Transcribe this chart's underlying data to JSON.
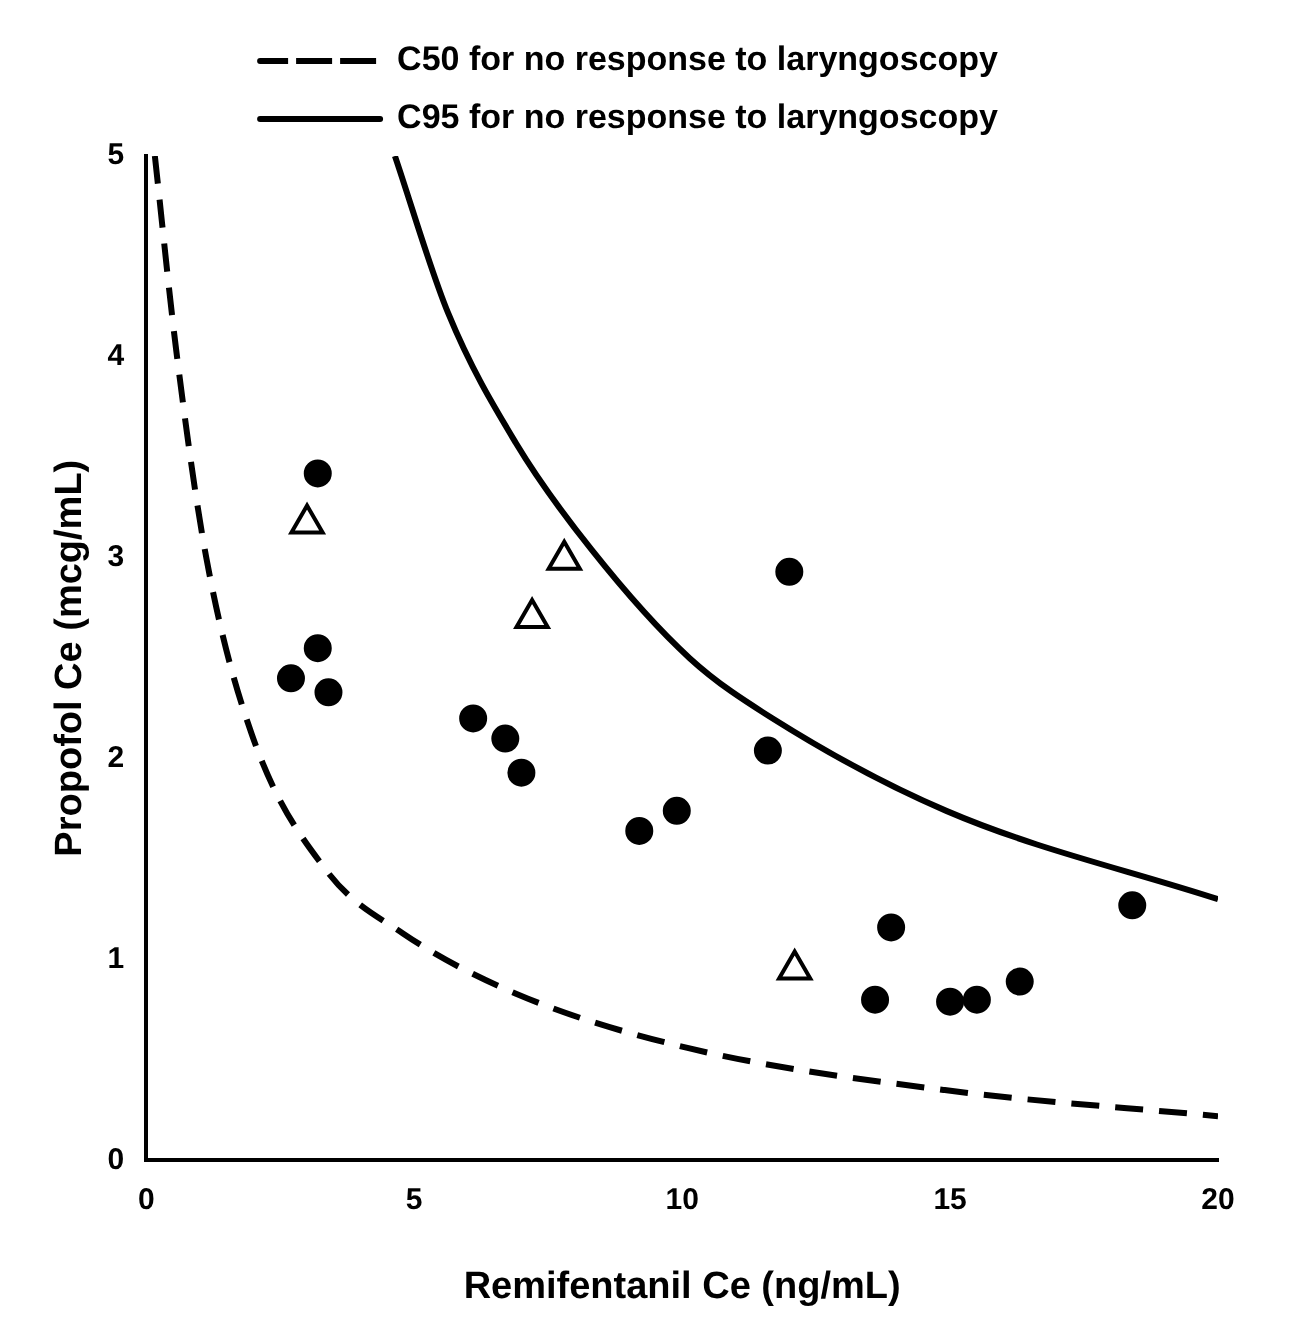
{
  "chart_data": {
    "type": "scatter",
    "xlabel": "Remifentanil Ce (ng/mL)",
    "ylabel": "Propofol Ce (mcg/mL)",
    "xlim": [
      0,
      20
    ],
    "xticks": [
      0,
      5,
      10,
      15,
      20
    ],
    "ylim": [
      0,
      5
    ],
    "yticks": [
      0,
      1,
      2,
      3,
      4,
      5
    ],
    "grid": false,
    "legend": "top",
    "series": [
      {
        "name": "C50 for no response to laryngoscopy",
        "type": "line",
        "color": "#000000",
        "line_style": "dashed",
        "marker": "none",
        "x": [
          0.16,
          0.56,
          1.12,
          1.97,
          3.37,
          4.79,
          6.9,
          10.1,
          14.9,
          20
        ],
        "values": [
          5,
          4.03,
          3.0,
          2.12,
          1.44,
          1.13,
          0.83,
          0.56,
          0.35,
          0.22
        ]
      },
      {
        "name": "C95 for no response to laryngoscopy",
        "type": "line",
        "color": "#000000",
        "line_style": "solid",
        "marker": "none",
        "x": [
          4.64,
          5.63,
          6.9,
          8.31,
          10.14,
          11.69,
          14.93,
          20
        ],
        "values": [
          5,
          4.22,
          3.57,
          3.04,
          2.5,
          2.2,
          1.74,
          1.3
        ]
      },
      {
        "type": "scatter",
        "color": "#000000",
        "marker": "circle",
        "x": [
          3.2,
          2.7,
          3.2,
          3.4,
          6.1,
          6.7,
          7.0,
          9.2,
          9.9,
          11.6,
          12.0,
          13.6,
          13.9,
          15.0,
          15.5,
          16.3,
          18.4
        ],
        "values": [
          3.42,
          2.4,
          2.55,
          2.33,
          2.2,
          2.1,
          1.93,
          1.64,
          1.74,
          2.04,
          2.93,
          0.8,
          1.16,
          0.79,
          0.8,
          0.89,
          1.27
        ]
      },
      {
        "type": "scatter",
        "color": "#000000",
        "marker": "triangle",
        "x": [
          3.0,
          7.2,
          7.8,
          12.1
        ],
        "values": [
          3.17,
          2.7,
          2.99,
          0.95
        ]
      }
    ]
  }
}
